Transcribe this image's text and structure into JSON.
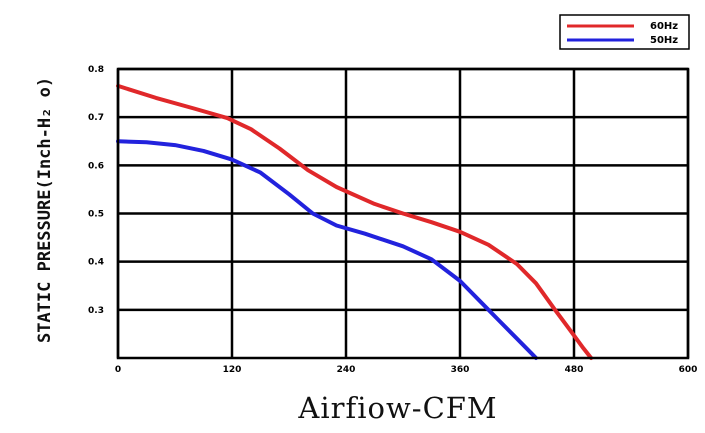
{
  "chart_data": {
    "type": "line",
    "xlabel": "Airfiow-CFM",
    "ylabel": "STATIC PRESSURE(Inch-H₂ o)",
    "xlim": [
      0,
      600
    ],
    "ylim": [
      0.2,
      0.8
    ],
    "x_ticks": [
      "0",
      "120",
      "240",
      "360",
      "480",
      "600"
    ],
    "y_ticks": [
      "0.8",
      "0.7",
      "0.6",
      "0.5",
      "0.4",
      "0.3"
    ],
    "grid": true,
    "legend_position": "top-right",
    "series": [
      {
        "name": "60Hz",
        "color": "#e0282a",
        "x": [
          0,
          40,
          80,
          115,
          140,
          170,
          200,
          230,
          270,
          300,
          330,
          360,
          390,
          420,
          440,
          460,
          475,
          490,
          498
        ],
        "y": [
          0.765,
          0.74,
          0.718,
          0.698,
          0.675,
          0.635,
          0.59,
          0.555,
          0.52,
          0.5,
          0.482,
          0.462,
          0.435,
          0.395,
          0.355,
          0.3,
          0.26,
          0.22,
          0.2
        ]
      },
      {
        "name": "50Hz",
        "color": "#2222dd",
        "x": [
          0,
          30,
          60,
          90,
          120,
          150,
          180,
          205,
          230,
          260,
          300,
          330,
          360,
          380,
          400,
          420,
          435,
          440
        ],
        "y": [
          0.65,
          0.648,
          0.642,
          0.63,
          0.612,
          0.585,
          0.54,
          0.5,
          0.475,
          0.458,
          0.432,
          0.405,
          0.36,
          0.32,
          0.28,
          0.24,
          0.21,
          0.2
        ]
      }
    ]
  }
}
